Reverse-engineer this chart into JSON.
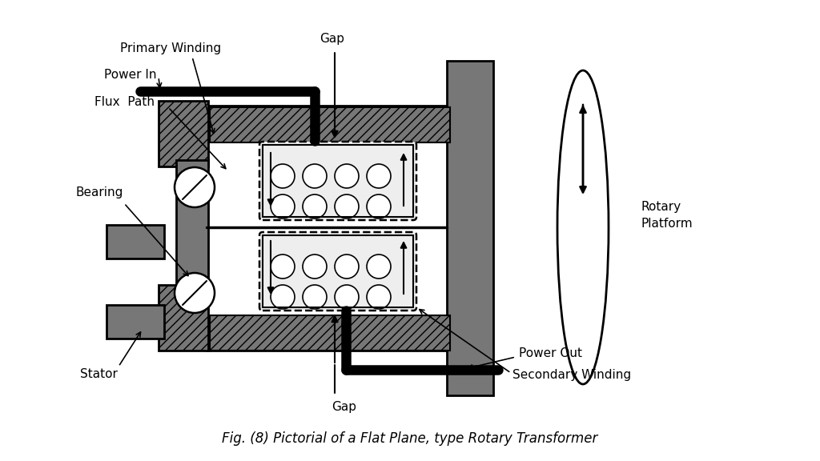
{
  "title": "Fig. (8) Pictorial of a Flat Plane, type Rotary Transformer",
  "title_fontsize": 12,
  "bg_color": "#ffffff",
  "label_fontsize": 11,
  "labels": {
    "primary_winding": "Primary Winding",
    "power_in": "Power In",
    "flux_path": "Flux  Path",
    "bearing": "Bearing",
    "stator": "Stator",
    "gap_top": "Gap",
    "gap_bottom": "Gap",
    "rotary_platform_1": "Rotary",
    "rotary_platform_2": "Platform",
    "power_out": "Power Out",
    "secondary_winding": "Secondary Winding"
  },
  "colors": {
    "black": "#000000",
    "white": "#ffffff",
    "dark_gray": "#777777",
    "mid_gray": "#aaaaaa",
    "light_gray": "#dddddd"
  }
}
